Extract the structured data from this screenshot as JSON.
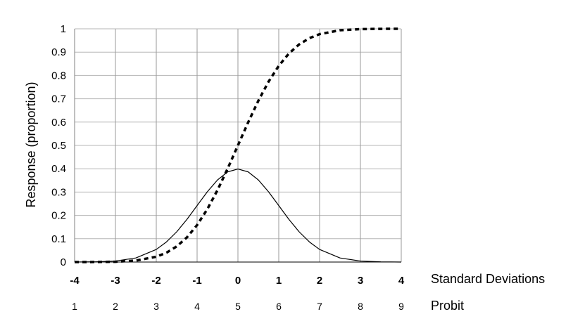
{
  "chart_data": {
    "type": "line",
    "title": "",
    "ylabel": "Response (proportion)",
    "xlabel": "Standard Deviations",
    "secondary_xlabel": "Probit",
    "ylim": [
      0,
      1
    ],
    "xlim": [
      -4,
      4
    ],
    "grid": true,
    "legend": "none",
    "y_ticks": [
      "0",
      "0.1",
      "0.2",
      "0.3",
      "0.4",
      "0.5",
      "0.6",
      "0.7",
      "0.8",
      "0.9",
      "1"
    ],
    "x_ticks": [
      "-4",
      "-3",
      "-2",
      "-1",
      "0",
      "1",
      "2",
      "3",
      "4"
    ],
    "probit_ticks": [
      "1",
      "2",
      "3",
      "4",
      "5",
      "6",
      "7",
      "8",
      "9"
    ],
    "x": [
      -4,
      -3.5,
      -3,
      -2.5,
      -2,
      -1.75,
      -1.5,
      -1.25,
      -1,
      -0.75,
      -0.5,
      -0.25,
      0,
      0.25,
      0.5,
      0.75,
      1,
      1.25,
      1.5,
      1.75,
      2,
      2.5,
      3,
      3.5,
      4
    ],
    "series": [
      {
        "style": "solid",
        "color": "#000000",
        "values": [
          0.0001,
          0.0009,
          0.0044,
          0.0175,
          0.054,
          0.0863,
          0.1295,
          0.1826,
          0.242,
          0.3011,
          0.3521,
          0.3867,
          0.3989,
          0.3867,
          0.3521,
          0.3011,
          0.242,
          0.1826,
          0.1295,
          0.0863,
          0.054,
          0.0175,
          0.0044,
          0.0009,
          0.0001
        ]
      },
      {
        "style": "dashed",
        "color": "#000000",
        "values": [
          0.0,
          0.0002,
          0.0013,
          0.0062,
          0.0228,
          0.0401,
          0.0668,
          0.1056,
          0.1587,
          0.2266,
          0.3085,
          0.4013,
          0.5,
          0.5987,
          0.6915,
          0.7734,
          0.8413,
          0.8944,
          0.9332,
          0.9599,
          0.9772,
          0.9938,
          0.9987,
          0.9998,
          1.0
        ]
      }
    ]
  }
}
